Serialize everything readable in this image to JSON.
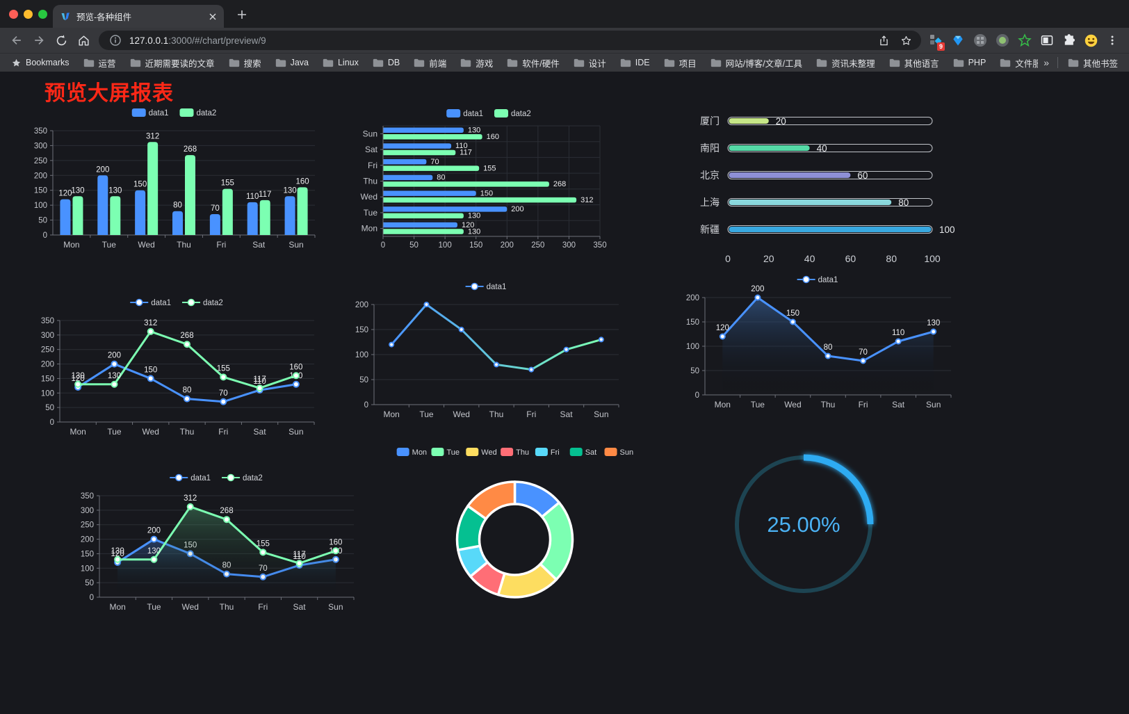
{
  "browser": {
    "window_controls": {
      "close": "#ff5f57",
      "minimize": "#febc2e",
      "maximize": "#28c840"
    },
    "tab": {
      "title": "预览-各种组件"
    },
    "url": {
      "host": "127.0.0.1",
      "rest": ":3000/#/chart/preview/9"
    },
    "bookmarks_label": "Bookmarks",
    "bookmarks": [
      "运营",
      "近期需要读的文章",
      "搜索",
      "Java",
      "Linux",
      "DB",
      "前端",
      "游戏",
      "软件/硬件",
      "设计",
      "IDE",
      "项目",
      "网站/博客/文章/工具",
      "资讯未整理",
      "其他语言",
      "PHP",
      "文件服务器"
    ],
    "bookmarks_overflow": "»",
    "other_bookmarks": "其他书签",
    "extensions": [
      "blocks-diamond",
      "blue-gem",
      "grey-waffle-circle",
      "green-dot-circle",
      "green-star",
      "side-panel",
      "puzzle",
      "emoji-face"
    ],
    "extension_badge": "9"
  },
  "page": {
    "title": "预览大屏报表",
    "title_color": "#fe2817",
    "background": "#17181d"
  },
  "chart_data": [
    {
      "id": "grouped-bar",
      "type": "bar",
      "categories": [
        "Mon",
        "Tue",
        "Wed",
        "Thu",
        "Fri",
        "Sat",
        "Sun"
      ],
      "series": [
        {
          "name": "data1",
          "color": "#4992ff",
          "values": [
            120,
            200,
            150,
            80,
            70,
            110,
            130
          ]
        },
        {
          "name": "data2",
          "color": "#7cffb2",
          "values": [
            130,
            130,
            312,
            268,
            155,
            117,
            160
          ]
        }
      ],
      "ylim": [
        0,
        350
      ],
      "ystep": 50,
      "labels": true,
      "legend_position": "top",
      "grid": true
    },
    {
      "id": "grouped-hbar",
      "type": "bar-horizontal",
      "categories": [
        "Mon",
        "Tue",
        "Wed",
        "Thu",
        "Fri",
        "Sat",
        "Sun"
      ],
      "display_order": "Sun-at-top",
      "series": [
        {
          "name": "data1",
          "color": "#4992ff",
          "values": [
            120,
            200,
            150,
            80,
            70,
            110,
            130
          ]
        },
        {
          "name": "data2",
          "color": "#7cffb2",
          "values": [
            130,
            130,
            312,
            268,
            155,
            117,
            160
          ]
        }
      ],
      "xlim": [
        0,
        350
      ],
      "xstep": 50,
      "labels": true,
      "legend_position": "top",
      "grid": true
    },
    {
      "id": "city-progress",
      "type": "progress-bar",
      "items": [
        {
          "label": "厦门",
          "value": 20,
          "color": "#c6e687"
        },
        {
          "label": "南阳",
          "value": 40,
          "color": "#55d9a6"
        },
        {
          "label": "北京",
          "value": 60,
          "color": "#8e90d6"
        },
        {
          "label": "上海",
          "value": 80,
          "color": "#8ad8dd"
        },
        {
          "label": "新疆",
          "value": 100,
          "color": "#38a8e0"
        }
      ],
      "xlim": [
        0,
        100
      ],
      "xticks": [
        0,
        20,
        40,
        60,
        80,
        100
      ],
      "track_border_color": "#c2c5cb"
    },
    {
      "id": "two-line",
      "type": "line",
      "categories": [
        "Mon",
        "Tue",
        "Wed",
        "Thu",
        "Fri",
        "Sat",
        "Sun"
      ],
      "series": [
        {
          "name": "data1",
          "color": "#4992ff",
          "values": [
            120,
            200,
            150,
            80,
            70,
            110,
            130
          ]
        },
        {
          "name": "data2",
          "color": "#7cffb2",
          "values": [
            130,
            130,
            312,
            268,
            155,
            117,
            160
          ]
        }
      ],
      "ylim": [
        0,
        350
      ],
      "ystep": 50,
      "labels": true,
      "markers": "hollow-circle"
    },
    {
      "id": "gradient-line",
      "type": "line",
      "categories": [
        "Mon",
        "Tue",
        "Wed",
        "Thu",
        "Fri",
        "Sat",
        "Sun"
      ],
      "series": [
        {
          "name": "data1",
          "color": "#4992ff",
          "gradient_end": "#7cffb2",
          "values": [
            120,
            200,
            150,
            80,
            70,
            110,
            130
          ]
        }
      ],
      "ylim": [
        0,
        200
      ],
      "ystep": 50,
      "labels": false,
      "markers": "hollow-circle"
    },
    {
      "id": "area-single",
      "type": "area",
      "categories": [
        "Mon",
        "Tue",
        "Wed",
        "Thu",
        "Fri",
        "Sat",
        "Sun"
      ],
      "series": [
        {
          "name": "data1",
          "color": "#4992ff",
          "fill": "rgba(62,110,175,0.55)",
          "values": [
            120,
            200,
            150,
            80,
            70,
            110,
            130
          ]
        }
      ],
      "ylim": [
        0,
        200
      ],
      "ystep": 50,
      "labels": true,
      "markers": "hollow-circle"
    },
    {
      "id": "two-area",
      "type": "area",
      "categories": [
        "Mon",
        "Tue",
        "Wed",
        "Thu",
        "Fri",
        "Sat",
        "Sun"
      ],
      "series": [
        {
          "name": "data1",
          "color": "#4992ff",
          "fill": "rgba(73,146,255,0.30)",
          "values": [
            120,
            200,
            150,
            80,
            70,
            110,
            130
          ]
        },
        {
          "name": "data2",
          "color": "#7cffb2",
          "fill": "rgba(95,205,140,0.32)",
          "values": [
            130,
            130,
            312,
            268,
            155,
            117,
            160
          ]
        }
      ],
      "ylim": [
        0,
        350
      ],
      "ystep": 50,
      "labels": true,
      "markers": "hollow-circle"
    },
    {
      "id": "weekday-donut",
      "type": "pie",
      "items": [
        {
          "label": "Mon",
          "value": 120,
          "color": "#4992ff"
        },
        {
          "label": "Tue",
          "value": 200,
          "color": "#7cffb2"
        },
        {
          "label": "Wed",
          "value": 150,
          "color": "#fddd60"
        },
        {
          "label": "Thu",
          "value": 80,
          "color": "#ff6e76"
        },
        {
          "label": "Fri",
          "value": 70,
          "color": "#58d9f9"
        },
        {
          "label": "Sat",
          "value": 110,
          "color": "#05c091"
        },
        {
          "label": "Sun",
          "value": 130,
          "color": "#ff8a45"
        }
      ],
      "start_angle": "top",
      "direction": "clockwise",
      "border_color": "#ffffff",
      "legend_position": "top"
    },
    {
      "id": "percent-gauge",
      "type": "gauge",
      "value_text": "25.00%",
      "percent": 25,
      "color": "#2fabf2",
      "track_color": "#1d4452",
      "text_color": "#4bb2f4"
    }
  ]
}
